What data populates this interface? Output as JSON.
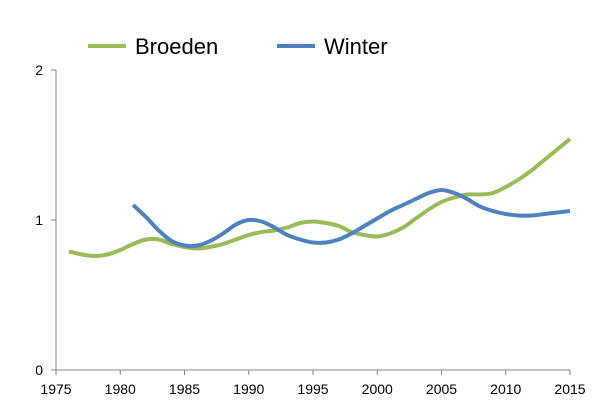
{
  "chart_data": {
    "type": "line",
    "title": "",
    "xlabel": "",
    "ylabel": "",
    "xlim": [
      1975,
      2015
    ],
    "ylim": [
      0,
      2
    ],
    "x_ticks": [
      1975,
      1980,
      1985,
      1990,
      1995,
      2000,
      2005,
      2010,
      2015
    ],
    "y_ticks": [
      0,
      1,
      2
    ],
    "x_tick_labels": [
      "1975",
      "1980",
      "1985",
      "1990",
      "1995",
      "2000",
      "2005",
      "2010",
      "2015"
    ],
    "y_tick_labels": [
      "0",
      "1",
      "2"
    ],
    "grid": false,
    "legend_position": "top",
    "series": [
      {
        "name": "Broeden",
        "color": "#9bbb59",
        "x": [
          1976,
          1977,
          1978,
          1979,
          1980,
          1981,
          1982,
          1983,
          1984,
          1985,
          1986,
          1987,
          1988,
          1989,
          1990,
          1991,
          1992,
          1993,
          1994,
          1995,
          1996,
          1997,
          1998,
          1999,
          2000,
          2001,
          2002,
          2003,
          2004,
          2005,
          2006,
          2007,
          2008,
          2009,
          2010,
          2011,
          2012,
          2013,
          2014,
          2015
        ],
        "y": [
          0.79,
          0.77,
          0.76,
          0.77,
          0.8,
          0.84,
          0.87,
          0.87,
          0.84,
          0.82,
          0.81,
          0.82,
          0.84,
          0.87,
          0.9,
          0.92,
          0.93,
          0.95,
          0.98,
          0.99,
          0.98,
          0.96,
          0.92,
          0.9,
          0.89,
          0.91,
          0.95,
          1.01,
          1.07,
          1.12,
          1.15,
          1.17,
          1.17,
          1.18,
          1.22,
          1.27,
          1.33,
          1.4,
          1.47,
          1.54
        ]
      },
      {
        "name": "Winter",
        "color": "#4f81bd",
        "x": [
          1981,
          1982,
          1983,
          1984,
          1985,
          1986,
          1987,
          1988,
          1989,
          1990,
          1991,
          1992,
          1993,
          1994,
          1995,
          1996,
          1997,
          1998,
          1999,
          2000,
          2001,
          2002,
          2003,
          2004,
          2005,
          2006,
          2007,
          2008,
          2009,
          2010,
          2011,
          2012,
          2013,
          2014,
          2015
        ],
        "y": [
          1.1,
          1.02,
          0.93,
          0.86,
          0.83,
          0.83,
          0.86,
          0.91,
          0.97,
          1.0,
          0.99,
          0.95,
          0.9,
          0.87,
          0.85,
          0.85,
          0.87,
          0.91,
          0.96,
          1.01,
          1.06,
          1.1,
          1.14,
          1.18,
          1.2,
          1.18,
          1.14,
          1.09,
          1.06,
          1.04,
          1.03,
          1.03,
          1.04,
          1.05,
          1.06
        ]
      }
    ]
  }
}
